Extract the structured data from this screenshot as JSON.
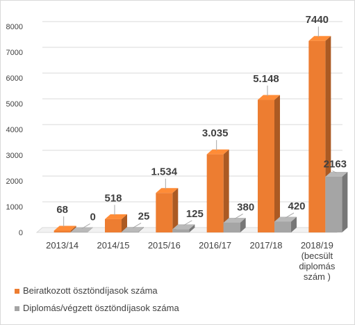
{
  "chart_data": {
    "type": "bar",
    "style": "3d-clustered-column",
    "categories": [
      [
        "2013/14"
      ],
      [
        "2014/15"
      ],
      [
        "2015/16"
      ],
      [
        "2016/17"
      ],
      [
        "2017/18"
      ],
      [
        "2018/19",
        "(becsült",
        "diplomás",
        "szám )"
      ]
    ],
    "series": [
      {
        "name": "Beiratkozott ösztöndíjasok száma",
        "color": "#ed7d31",
        "values": [
          68,
          518,
          1534,
          3035,
          5148,
          7440
        ],
        "labels": [
          "68",
          "518",
          "1.534",
          "3.035",
          "5.148",
          "7440"
        ]
      },
      {
        "name": "Diplomás/végzett ösztöndíjasok száma",
        "color": "#a5a5a5",
        "values": [
          0,
          25,
          125,
          380,
          420,
          2163
        ],
        "labels": [
          "0",
          "25",
          "125",
          "380",
          "420",
          "2163"
        ]
      }
    ],
    "yticks": [
      "0",
      "1000",
      "2000",
      "3000",
      "4000",
      "5000",
      "6000",
      "7000",
      "8000"
    ],
    "ylim": [
      0,
      8000
    ],
    "grid": true,
    "legend_position": "bottom-left"
  }
}
